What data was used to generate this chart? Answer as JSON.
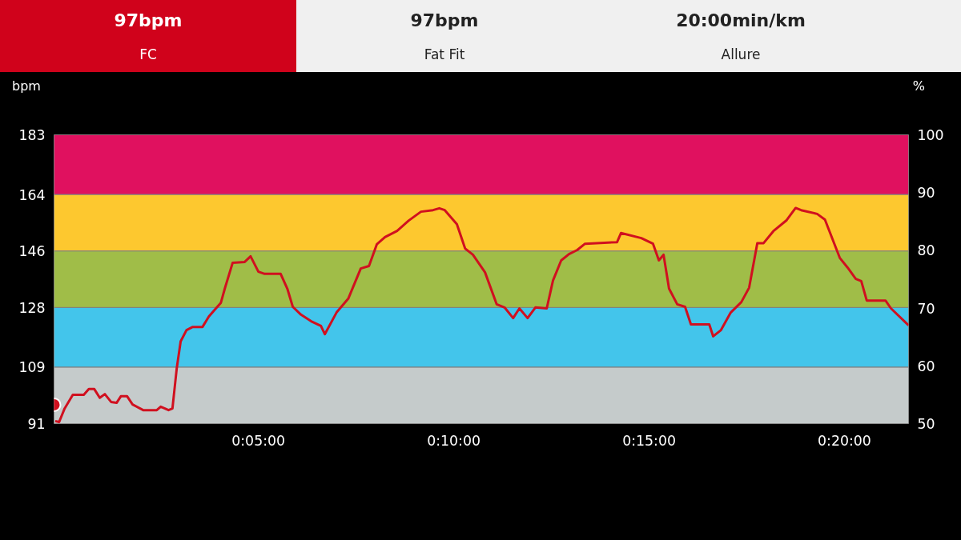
{
  "chart_data": {
    "type": "line",
    "annotations": [
      "97bpm",
      "FC",
      "97bpm",
      "Fat Fit",
      "20:00min/km",
      "Allure"
    ],
    "ylabel": "bpm",
    "y2label": "%",
    "xlim": [
      -0.23,
      21.64
    ],
    "xticks": [
      {
        "value": 5,
        "label": "0:05:00"
      },
      {
        "value": 10,
        "label": "0:10:00"
      },
      {
        "value": 15,
        "label": "0:15:00"
      },
      {
        "value": 20,
        "label": "0:20:00"
      }
    ],
    "ylim": [
      91,
      183
    ],
    "yticks": [
      91,
      109,
      128,
      146,
      164,
      183
    ],
    "y2lim": [
      50,
      100
    ],
    "y2ticks": [
      50,
      60,
      70,
      80,
      90,
      100
    ],
    "grid": false,
    "line_style": "solid",
    "bands": [
      {
        "axis": "y",
        "from": 91,
        "to": 109,
        "color": "#c5cbcb"
      },
      {
        "axis": "y",
        "from": 109,
        "to": 128,
        "color": "#43c5eb"
      },
      {
        "axis": "y",
        "from": 128,
        "to": 146,
        "color": "#a0bd48"
      },
      {
        "axis": "y",
        "from": 146,
        "to": 164,
        "color": "#fdc82f"
      },
      {
        "axis": "y",
        "from": 164,
        "to": 183,
        "color": "#e0115f"
      }
    ],
    "series": [
      {
        "color": "#d0101f",
        "x": [
          -0.2,
          -0.1,
          0.04,
          0.25,
          0.53,
          0.66,
          0.8,
          0.94,
          1.07,
          1.23,
          1.37,
          1.48,
          1.64,
          1.78,
          2.05,
          2.4,
          2.5,
          2.7,
          2.8,
          2.91,
          3.01,
          3.16,
          3.32,
          3.57,
          3.73,
          3.89,
          4.04,
          4.14,
          4.34,
          4.65,
          4.8,
          5.0,
          5.16,
          5.57,
          5.74,
          5.88,
          6.09,
          6.35,
          6.6,
          6.7,
          7.0,
          7.3,
          7.62,
          7.83,
          8.03,
          8.24,
          8.55,
          8.85,
          9.16,
          9.47,
          9.63,
          9.77,
          10.08,
          10.29,
          10.49,
          10.8,
          11.1,
          11.3,
          11.52,
          11.68,
          11.89,
          12.09,
          12.38,
          12.54,
          12.75,
          12.95,
          13.16,
          13.36,
          14.18,
          14.28,
          14.8,
          15.1,
          15.25,
          15.37,
          15.51,
          15.72,
          15.92,
          16.07,
          16.54,
          16.64,
          16.84,
          17.09,
          17.36,
          17.56,
          17.77,
          17.93,
          18.18,
          18.52,
          18.75,
          18.89,
          19.3,
          19.5,
          19.88,
          20.08,
          20.29,
          20.43,
          20.57,
          21.05,
          21.19,
          21.64
        ],
        "values": [
          91.8,
          91.5,
          95.8,
          100.2,
          100.2,
          102,
          102,
          99.2,
          100.4,
          97.9,
          97.6,
          99.7,
          99.7,
          97.1,
          95.3,
          95.3,
          96.4,
          95.3,
          95.8,
          108.6,
          117.2,
          120.8,
          121.8,
          121.8,
          125.1,
          127.4,
          129.5,
          134,
          142.2,
          142.5,
          144.3,
          139.4,
          138.7,
          138.7,
          134,
          128.2,
          125.7,
          123.6,
          122.1,
          119.5,
          126.4,
          130.8,
          140.4,
          141.2,
          148.1,
          150.4,
          152.4,
          155.7,
          158.5,
          159,
          159.6,
          159,
          154.5,
          146.8,
          144.8,
          139.2,
          129,
          128,
          124.6,
          127.7,
          124.6,
          128,
          127.7,
          136.6,
          143,
          145,
          146.3,
          148.3,
          148.8,
          151.7,
          150.1,
          148.3,
          143,
          144.8,
          134,
          129,
          128.2,
          122.6,
          122.6,
          118.8,
          120.8,
          126.4,
          129.7,
          134.3,
          148.5,
          148.5,
          152.3,
          155.8,
          159.7,
          159,
          157.8,
          156,
          143.8,
          140.7,
          137.1,
          136.4,
          130.2,
          130.2,
          127.7,
          122.3
        ]
      },
      {
        "type": "scatter",
        "color": "#d0101f",
        "x": [
          -0.23
        ],
        "values": [
          97
        ]
      }
    ]
  }
}
